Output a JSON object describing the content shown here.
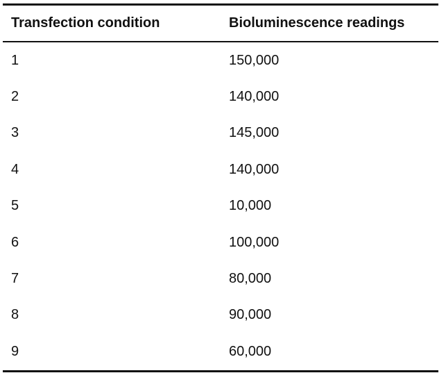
{
  "table": {
    "headers": [
      "Transfection condition",
      "Bioluminescence readings"
    ],
    "rows": [
      [
        "1",
        "150,000"
      ],
      [
        "2",
        "140,000"
      ],
      [
        "3",
        "145,000"
      ],
      [
        "4",
        "140,000"
      ],
      [
        "5",
        "10,000"
      ],
      [
        "6",
        "100,000"
      ],
      [
        "7",
        "80,000"
      ],
      [
        "8",
        "90,000"
      ],
      [
        "9",
        "60,000"
      ]
    ]
  }
}
